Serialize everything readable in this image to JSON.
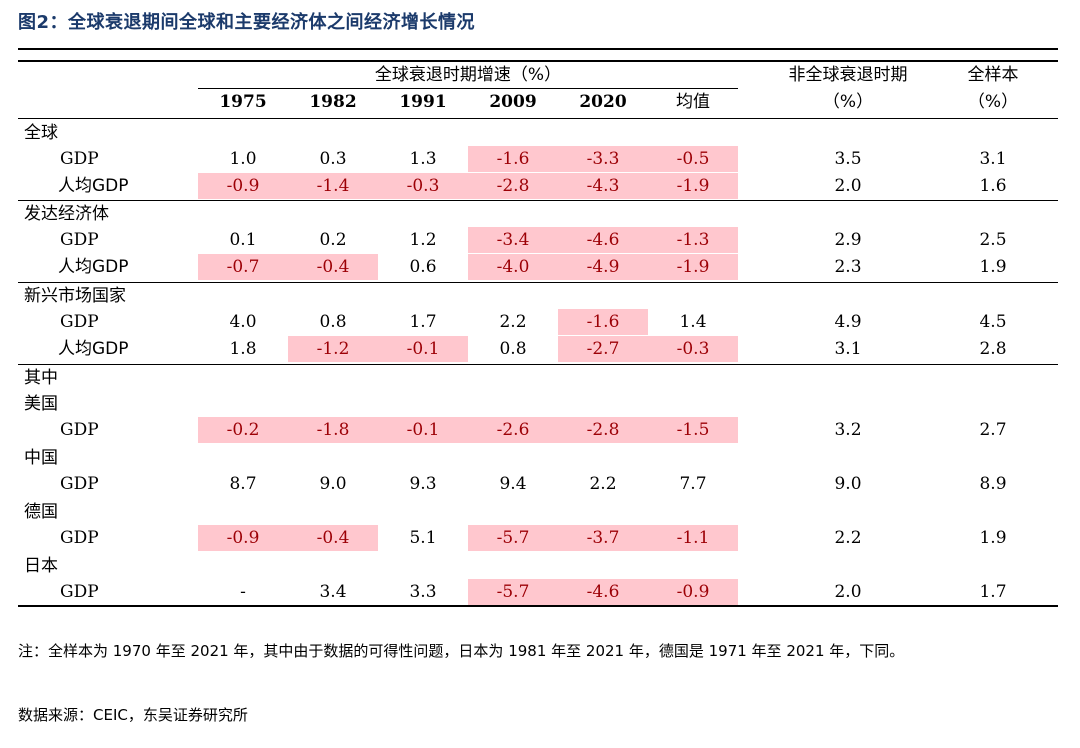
{
  "title": "图2：全球衰退期间全球和主要经济体之间经济增长情况",
  "header": {
    "recession_group": "全球衰退时期增速（%）",
    "years": [
      "1975",
      "1982",
      "1991",
      "2009",
      "2020"
    ],
    "mean_label": "均值",
    "nonrec_line1": "非全球衰退时期",
    "nonrec_line2": "（%）",
    "full_line1": "全样本",
    "full_line2": "（%）"
  },
  "groups": {
    "global": "全球",
    "developed": "发达经济体",
    "emerging": "新兴市场国家",
    "among": "其中",
    "us": "美国",
    "china": "中国",
    "germany": "德国",
    "japan": "日本"
  },
  "rows": [
    {
      "label": "GDP",
      "values": [
        "1.0",
        "0.3",
        "1.3",
        "-1.6",
        "-3.3",
        "-0.5",
        "3.5",
        "3.1"
      ]
    },
    {
      "label": "人均GDP",
      "values": [
        "-0.9",
        "-1.4",
        "-0.3",
        "-2.8",
        "-4.3",
        "-1.9",
        "2.0",
        "1.6"
      ]
    },
    {
      "label": "GDP",
      "values": [
        "0.1",
        "0.2",
        "1.2",
        "-3.4",
        "-4.6",
        "-1.3",
        "2.9",
        "2.5"
      ]
    },
    {
      "label": "人均GDP",
      "values": [
        "-0.7",
        "-0.4",
        "0.6",
        "-4.0",
        "-4.9",
        "-1.9",
        "2.3",
        "1.9"
      ]
    },
    {
      "label": "GDP",
      "values": [
        "4.0",
        "0.8",
        "1.7",
        "2.2",
        "-1.6",
        "1.4",
        "4.9",
        "4.5"
      ]
    },
    {
      "label": "人均GDP",
      "values": [
        "1.8",
        "-1.2",
        "-0.1",
        "0.8",
        "-2.7",
        "-0.3",
        "3.1",
        "2.8"
      ]
    },
    {
      "label": "GDP",
      "values": [
        "-0.2",
        "-1.8",
        "-0.1",
        "-2.6",
        "-2.8",
        "-1.5",
        "3.2",
        "2.7"
      ]
    },
    {
      "label": "GDP",
      "values": [
        "8.7",
        "9.0",
        "9.3",
        "9.4",
        "2.2",
        "7.7",
        "9.0",
        "8.9"
      ]
    },
    {
      "label": "GDP",
      "values": [
        "-0.9",
        "-0.4",
        "5.1",
        "-5.7",
        "-3.7",
        "-1.1",
        "2.2",
        "1.9"
      ]
    },
    {
      "label": "GDP",
      "values": [
        "-",
        "3.4",
        "3.3",
        "-5.7",
        "-4.6",
        "-0.9",
        "2.0",
        "1.7"
      ]
    }
  ],
  "note": "注：全样本为 1970 年至 2021 年，其中由于数据的可得性问题，日本为 1981 年至 2021 年，德国是 1971 年至 2021 年，下同。",
  "source": "数据来源：CEIC，东吴证券研究所",
  "highlight_colors": {
    "negative_bg": "#ffc7ce",
    "negative_text": "#9c0006"
  }
}
